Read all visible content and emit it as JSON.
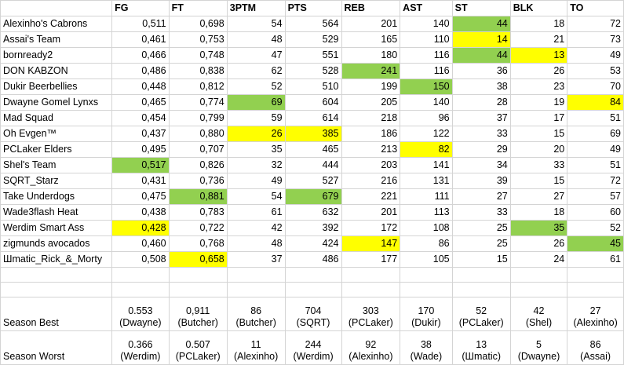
{
  "columns": [
    "",
    "FG",
    "FT",
    "3PTM",
    "PTS",
    "REB",
    "AST",
    "ST",
    "BLK",
    "TO"
  ],
  "rows": [
    {
      "team": "Alexinho's Cabrons",
      "vals": [
        "0,511",
        "0,698",
        "54",
        "564",
        "201",
        "140",
        "44",
        "18",
        "72"
      ],
      "hl": [
        "",
        "",
        "",
        "",
        "",
        "",
        "g",
        "",
        ""
      ]
    },
    {
      "team": "Assai's Team",
      "vals": [
        "0,461",
        "0,753",
        "48",
        "529",
        "165",
        "110",
        "14",
        "21",
        "73"
      ],
      "hl": [
        "",
        "",
        "",
        "",
        "",
        "",
        "y",
        "",
        ""
      ]
    },
    {
      "team": "bornready2",
      "vals": [
        "0,466",
        "0,748",
        "47",
        "551",
        "180",
        "116",
        "44",
        "13",
        "49"
      ],
      "hl": [
        "",
        "",
        "",
        "",
        "",
        "",
        "g",
        "y",
        ""
      ]
    },
    {
      "team": "DON KABZON",
      "vals": [
        "0,486",
        "0,838",
        "62",
        "528",
        "241",
        "116",
        "36",
        "26",
        "53"
      ],
      "hl": [
        "",
        "",
        "",
        "",
        "g",
        "",
        "",
        "",
        ""
      ]
    },
    {
      "team": "Dukir Beerbellies",
      "vals": [
        "0,448",
        "0,812",
        "52",
        "510",
        "199",
        "150",
        "38",
        "23",
        "70"
      ],
      "hl": [
        "",
        "",
        "",
        "",
        "",
        "g",
        "",
        "",
        ""
      ]
    },
    {
      "team": "Dwayne Gomel Lynxs",
      "vals": [
        "0,465",
        "0,774",
        "69",
        "604",
        "205",
        "140",
        "28",
        "19",
        "84"
      ],
      "hl": [
        "",
        "",
        "g",
        "",
        "",
        "",
        "",
        "",
        "y"
      ]
    },
    {
      "team": "Mad Squad",
      "vals": [
        "0,454",
        "0,799",
        "59",
        "614",
        "218",
        "96",
        "37",
        "17",
        "51"
      ],
      "hl": [
        "",
        "",
        "",
        "",
        "",
        "",
        "",
        "",
        ""
      ]
    },
    {
      "team": "Oh Evgen™",
      "vals": [
        "0,437",
        "0,880",
        "26",
        "385",
        "186",
        "122",
        "33",
        "15",
        "69"
      ],
      "hl": [
        "",
        "",
        "y",
        "y",
        "",
        "",
        "",
        "",
        ""
      ]
    },
    {
      "team": "PCLaker Elders",
      "vals": [
        "0,495",
        "0,707",
        "35",
        "465",
        "213",
        "82",
        "29",
        "20",
        "49"
      ],
      "hl": [
        "",
        "",
        "",
        "",
        "",
        "y",
        "",
        "",
        ""
      ]
    },
    {
      "team": "Shel's Team",
      "vals": [
        "0,517",
        "0,826",
        "32",
        "444",
        "203",
        "141",
        "34",
        "33",
        "51"
      ],
      "hl": [
        "g",
        "",
        "",
        "",
        "",
        "",
        "",
        "",
        ""
      ]
    },
    {
      "team": "SQRT_Starz",
      "vals": [
        "0,431",
        "0,736",
        "49",
        "527",
        "216",
        "131",
        "39",
        "15",
        "72"
      ],
      "hl": [
        "",
        "",
        "",
        "",
        "",
        "",
        "",
        "",
        ""
      ]
    },
    {
      "team": "Take Underdogs",
      "vals": [
        "0,475",
        "0,881",
        "54",
        "679",
        "221",
        "111",
        "27",
        "27",
        "57"
      ],
      "hl": [
        "",
        "g",
        "",
        "g",
        "",
        "",
        "",
        "",
        ""
      ]
    },
    {
      "team": "Wade3flash Heat",
      "vals": [
        "0,438",
        "0,783",
        "61",
        "632",
        "201",
        "113",
        "33",
        "18",
        "60"
      ],
      "hl": [
        "",
        "",
        "",
        "",
        "",
        "",
        "",
        "",
        ""
      ]
    },
    {
      "team": "Werdim Smart Ass",
      "vals": [
        "0,428",
        "0,722",
        "42",
        "392",
        "172",
        "108",
        "25",
        "35",
        "52"
      ],
      "hl": [
        "y",
        "",
        "",
        "",
        "",
        "",
        "",
        "g",
        ""
      ]
    },
    {
      "team": "zigmunds avocados",
      "vals": [
        "0,460",
        "0,768",
        "48",
        "424",
        "147",
        "86",
        "25",
        "26",
        "45"
      ],
      "hl": [
        "",
        "",
        "",
        "",
        "y",
        "",
        "",
        "",
        "g"
      ]
    },
    {
      "team": "Шmatic_Rick_&_Morty",
      "vals": [
        "0,508",
        "0,658",
        "37",
        "486",
        "177",
        "105",
        "15",
        "24",
        "61"
      ],
      "hl": [
        "",
        "y",
        "",
        "",
        "",
        "",
        "",
        "",
        ""
      ]
    }
  ],
  "season_best": {
    "label": "Season Best",
    "cells": [
      {
        "v": "0.553",
        "who": "(Dwayne)"
      },
      {
        "v": "0,911",
        "who": "(Butcher)"
      },
      {
        "v": "86",
        "who": "(Butcher)"
      },
      {
        "v": "704",
        "who": "(SQRT)"
      },
      {
        "v": "303",
        "who": "(PCLaker)"
      },
      {
        "v": "170",
        "who": "(Dukir)"
      },
      {
        "v": "52",
        "who": "(PCLaker)"
      },
      {
        "v": "42",
        "who": "(Shel)"
      },
      {
        "v": "27",
        "who": "(Alexinho)"
      }
    ]
  },
  "season_worst": {
    "label": "Season Worst",
    "cells": [
      {
        "v": "0.366",
        "who": "(Werdim)"
      },
      {
        "v": "0.507",
        "who": "(PCLaker)"
      },
      {
        "v": "11",
        "who": "(Alexinho)"
      },
      {
        "v": "244",
        "who": "(Werdim)"
      },
      {
        "v": "92",
        "who": "(Alexinho)"
      },
      {
        "v": "38",
        "who": "(Wade)"
      },
      {
        "v": "13",
        "who": "(Шmatic)"
      },
      {
        "v": "5",
        "who": "(Dwayne)"
      },
      {
        "v": "86",
        "who": "(Assai)"
      }
    ]
  },
  "colors": {
    "green": "#92d050",
    "yellow": "#ffff00",
    "grid": "#d4d4d4"
  }
}
